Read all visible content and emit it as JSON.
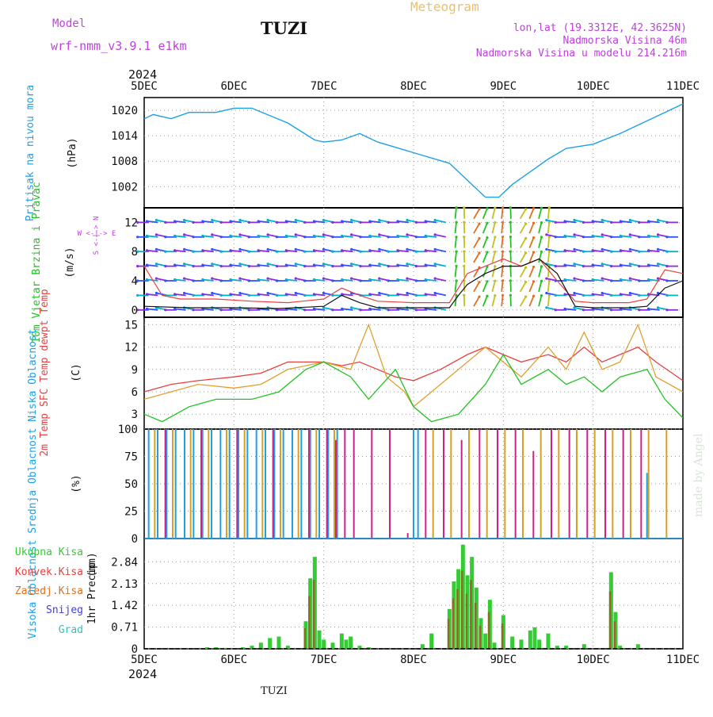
{
  "header": {
    "model_label": "Model",
    "model_name": "wrf-nmm_v3.9.1 e1km",
    "station": "TUZI",
    "meteogram": "Meteogram",
    "lonlat": "lon,lat (19.3312E, 42.3625N)",
    "elevation": "Nadmorska Visina 46m",
    "model_elevation": "Nadmorska Visina u modelu 214.216m",
    "year": "2024",
    "footer_station": "TUZI",
    "watermark": "made by Angel"
  },
  "colors": {
    "pressure": "#1ea0e6",
    "wind_label": "#22c322",
    "wind_sub": "#c040e0",
    "t2m": "#e84040",
    "sfc": "#e0a030",
    "dew": "#22c322",
    "high": "#1ea0e6",
    "mid": "#d8a020",
    "low": "#cc2288",
    "rain": "#33cc33",
    "conv": "#e84040",
    "frozen": "#e07020",
    "snow": "#4040e0",
    "hail": "#30c0c0"
  },
  "x_ticks": [
    "5DEC",
    "6DEC",
    "7DEC",
    "8DEC",
    "9DEC",
    "10DEC",
    "11DEC"
  ],
  "chart_data": [
    {
      "type": "line",
      "ylabel": "Pritisak na nivou mora",
      "unit": "(hPa)",
      "ylim": [
        997,
        1023
      ],
      "yticks": [
        "1002",
        "1008",
        "1014",
        "1020"
      ],
      "series": [
        {
          "x": [
            0,
            0.1,
            0.3,
            0.5,
            0.8,
            1.0,
            1.2,
            1.6,
            1.9,
            2.0,
            2.2,
            2.4,
            2.6,
            3.0,
            3.4,
            3.6,
            3.8,
            3.95,
            4.1,
            4.3,
            4.5,
            4.7,
            5.0,
            5.3,
            5.6,
            5.8,
            6.0
          ],
          "values": [
            1018,
            1019,
            1018,
            1019.5,
            1019.5,
            1020.5,
            1020.5,
            1017,
            1013,
            1012.5,
            1013,
            1014.5,
            1012.5,
            1010,
            1007.5,
            1003.5,
            999.5,
            999.5,
            1002.5,
            1005.5,
            1008.5,
            1011,
            1012,
            1014.5,
            1017.5,
            1019.5,
            1021.5
          ]
        }
      ]
    },
    {
      "type": "line",
      "ylabel": "10m Vjetar Brzina i Pravac",
      "unit": "(m/s)",
      "direction_legend": "W <-|-> E",
      "direction_ns": "S <-|-> N",
      "ylim": [
        -1,
        14
      ],
      "yticks": [
        "0",
        "4",
        "8",
        "12"
      ],
      "series": [
        {
          "x": [
            0,
            0.2,
            0.4,
            0.8,
            1.2,
            1.6,
            2.0,
            2.2,
            2.4,
            2.6,
            3.0,
            3.4,
            3.5,
            3.6,
            3.8,
            4.0,
            4.2,
            4.4,
            4.6,
            4.8,
            5.0,
            5.4,
            5.6,
            5.8,
            6.0
          ],
          "values": [
            6,
            2,
            1.5,
            1.5,
            1.2,
            1,
            1.5,
            3,
            2,
            1.2,
            1,
            1,
            3,
            5,
            6,
            7,
            6,
            7,
            4,
            1.2,
            1,
            1,
            1.5,
            5.5,
            5
          ]
        },
        {
          "x": [
            0,
            0.5,
            1.0,
            1.5,
            2.0,
            2.2,
            2.4,
            2.6,
            3.0,
            3.4,
            3.5,
            3.6,
            3.8,
            4.0,
            4.2,
            4.4,
            4.6,
            4.8,
            5.0,
            5.4,
            5.6,
            5.8,
            6.0
          ],
          "values": [
            0.5,
            0.3,
            0.3,
            0.2,
            0.5,
            2,
            1,
            0.3,
            0.3,
            0.3,
            2,
            3.5,
            5,
            6,
            6,
            7,
            5,
            0.5,
            0.3,
            0.3,
            0.5,
            3,
            4
          ]
        }
      ]
    },
    {
      "type": "line",
      "ylabel": "2m Temp SFC Temp dewpt Temp",
      "unit": "(C)",
      "ylim": [
        1,
        16
      ],
      "yticks": [
        "3",
        "6",
        "9",
        "12",
        "15"
      ],
      "series": [
        {
          "name": "2m Temp",
          "x": [
            0,
            0.3,
            0.6,
            1.0,
            1.3,
            1.6,
            2.0,
            2.2,
            2.4,
            2.6,
            2.8,
            3.0,
            3.3,
            3.6,
            3.8,
            4.0,
            4.2,
            4.5,
            4.7,
            4.9,
            5.1,
            5.3,
            5.5,
            5.7,
            6.0
          ],
          "values": [
            6,
            7,
            7.5,
            8,
            8.5,
            10,
            10,
            9.5,
            10,
            9,
            8,
            7.5,
            9,
            11,
            12,
            11,
            10,
            11,
            10,
            12,
            10,
            11,
            12,
            10,
            7.5
          ]
        },
        {
          "name": "SFC Temp",
          "x": [
            0,
            0.3,
            0.6,
            1.0,
            1.3,
            1.6,
            2.0,
            2.3,
            2.5,
            2.7,
            2.9,
            3.0,
            3.3,
            3.6,
            3.8,
            4.0,
            4.2,
            4.5,
            4.7,
            4.9,
            5.1,
            5.3,
            5.5,
            5.7,
            6.0
          ],
          "values": [
            5,
            6,
            7,
            6.5,
            7,
            9,
            10,
            9,
            15,
            8,
            6,
            4,
            7,
            10,
            12,
            10,
            8,
            12,
            9,
            14,
            9,
            10,
            15,
            8,
            6
          ]
        },
        {
          "name": "dewpt Temp",
          "x": [
            0,
            0.2,
            0.5,
            0.8,
            1.2,
            1.5,
            1.8,
            2.0,
            2.3,
            2.5,
            2.8,
            3.0,
            3.2,
            3.5,
            3.8,
            4.0,
            4.2,
            4.5,
            4.7,
            4.9,
            5.1,
            5.3,
            5.6,
            5.8,
            6.0
          ],
          "values": [
            3,
            2,
            4,
            5,
            5,
            6,
            9,
            10,
            8,
            5,
            9,
            4,
            2,
            3,
            7,
            11,
            7,
            9,
            7,
            8,
            6,
            8,
            9,
            5,
            2.5
          ]
        }
      ]
    },
    {
      "type": "bar",
      "ylabel": "Visoka Oblacnost Srednja Oblacnost Niska Oblacnost",
      "unit": "(%)",
      "ylim": [
        0,
        100
      ],
      "yticks": [
        "0",
        "25",
        "50",
        "75",
        "100"
      ],
      "series": [
        {
          "name": "Visoka Oblacnost",
          "x": [
            0.05,
            0.15,
            0.25,
            0.35,
            0.45,
            0.55,
            0.65,
            0.75,
            0.85,
            0.95,
            1.05,
            1.15,
            1.25,
            1.35,
            1.45,
            1.55,
            1.65,
            1.75,
            1.85,
            1.95,
            2.05,
            2.15,
            3.0,
            3.05,
            5.6
          ],
          "values": [
            100,
            100,
            100,
            100,
            100,
            100,
            100,
            100,
            100,
            100,
            100,
            100,
            100,
            100,
            100,
            100,
            100,
            100,
            100,
            100,
            100,
            100,
            100,
            100,
            60
          ]
        },
        {
          "name": "Srednja Oblacnost",
          "x": [
            0.1,
            0.3,
            0.5,
            0.7,
            0.9,
            1.1,
            1.3,
            1.5,
            1.7,
            1.9,
            2.1,
            3.2,
            3.4,
            3.6,
            3.8,
            4.0,
            4.2,
            4.4,
            4.6,
            4.8,
            5.0,
            5.2,
            5.4,
            5.6,
            5.8
          ],
          "values": [
            100,
            100,
            100,
            100,
            100,
            100,
            100,
            100,
            100,
            100,
            100,
            100,
            100,
            100,
            100,
            100,
            100,
            100,
            100,
            100,
            100,
            100,
            100,
            100,
            100
          ]
        },
        {
          "name": "Niska Oblacnost",
          "x": [
            0.2,
            0.6,
            1.0,
            1.4,
            1.8,
            2.0,
            2.1,
            2.2,
            2.3,
            2.5,
            2.7,
            2.9,
            3.1,
            3.3,
            3.5,
            3.7,
            3.9,
            4.1,
            4.3,
            4.5,
            4.7,
            4.9,
            5.1,
            5.3,
            5.5
          ],
          "values": [
            100,
            100,
            100,
            100,
            100,
            100,
            90,
            100,
            100,
            100,
            100,
            5,
            100,
            100,
            90,
            100,
            100,
            100,
            80,
            100,
            100,
            100,
            100,
            100,
            100
          ]
        }
      ]
    },
    {
      "type": "bar",
      "ylabel": "1hr Precip",
      "unit": "(mm)",
      "ylim": [
        0,
        3.6
      ],
      "yticks": [
        "0",
        "0.71",
        "1.42",
        "2.13",
        "2.84"
      ],
      "legend": [
        "Ukupna Kisa",
        "Konvek.Kisa",
        "Zaledj.Kisa",
        "Snijeg",
        "Grad"
      ],
      "series": [
        {
          "name": "Ukupna Kisa",
          "x": [
            0.7,
            0.8,
            0.9,
            1.1,
            1.2,
            1.3,
            1.4,
            1.5,
            1.6,
            1.8,
            1.85,
            1.9,
            1.95,
            2.0,
            2.1,
            2.2,
            2.25,
            2.3,
            2.4,
            2.5,
            3.1,
            3.2,
            3.4,
            3.45,
            3.5,
            3.55,
            3.6,
            3.65,
            3.7,
            3.75,
            3.8,
            3.85,
            3.9,
            4.0,
            4.1,
            4.2,
            4.3,
            4.35,
            4.4,
            4.5,
            4.6,
            4.7,
            4.9,
            5.2,
            5.25,
            5.3,
            5.5
          ],
          "values": [
            0.05,
            0.05,
            0.03,
            0.05,
            0.1,
            0.2,
            0.35,
            0.4,
            0.1,
            0.9,
            2.3,
            3.0,
            0.6,
            0.3,
            0.2,
            0.5,
            0.3,
            0.4,
            0.1,
            0.05,
            0.15,
            0.5,
            1.3,
            2.2,
            2.6,
            3.4,
            2.4,
            3.0,
            2.0,
            1.0,
            0.5,
            1.6,
            0.2,
            1.1,
            0.4,
            0.3,
            0.6,
            0.7,
            0.3,
            0.5,
            0.1,
            0.1,
            0.15,
            2.5,
            1.2,
            0.1,
            0.15
          ]
        }
      ]
    }
  ]
}
